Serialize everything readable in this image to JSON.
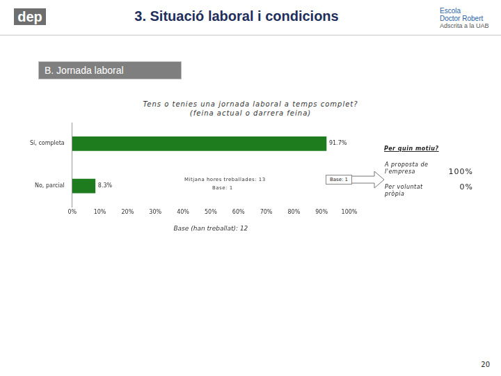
{
  "page": {
    "header": "3. Situació laboral i condicions",
    "logo_left": "dep",
    "logo_right": [
      "Escola",
      "Doctor Robert",
      "Adscrita a la UAB"
    ],
    "section": "B. Jornada laboral",
    "page_number": "20"
  },
  "chart_data": {
    "type": "bar",
    "orientation": "horizontal",
    "title": "Tens o tenies una jornada laboral a temps complet?",
    "subtitle": "(feina actual o darrera feina)",
    "categories": [
      "Sí, completa",
      "No, parcial"
    ],
    "values": [
      91.7,
      8.3
    ],
    "value_labels": [
      "91.7%",
      "8.3%"
    ],
    "color": "#1e7b1e",
    "data_labels": true,
    "grid": false,
    "xlim": [
      0,
      100
    ],
    "xticks": [
      {
        "value": 0,
        "label": "0%"
      },
      {
        "value": 10,
        "label": "10%"
      },
      {
        "value": 20,
        "label": "20%"
      },
      {
        "value": 30,
        "label": "30%"
      },
      {
        "value": 40,
        "label": "40%"
      },
      {
        "value": 50,
        "label": "50%"
      },
      {
        "value": 60,
        "label": "60%"
      },
      {
        "value": 70,
        "label": "70%"
      },
      {
        "value": 80,
        "label": "80%"
      },
      {
        "value": 90,
        "label": "90%"
      },
      {
        "value": 100,
        "label": "100%"
      }
    ],
    "xlabel": "Base (han treballat): 12",
    "annotations": [
      "Mitjana hores treballades: 13",
      "Base: 1"
    ]
  },
  "follow_up": {
    "base": "Base: 1",
    "title": "Per quin motiu?",
    "answers": [
      {
        "label": "A proposta de l'empresa",
        "share": "100%"
      },
      {
        "label": "Per voluntat pròpia",
        "share": "0%"
      }
    ]
  }
}
